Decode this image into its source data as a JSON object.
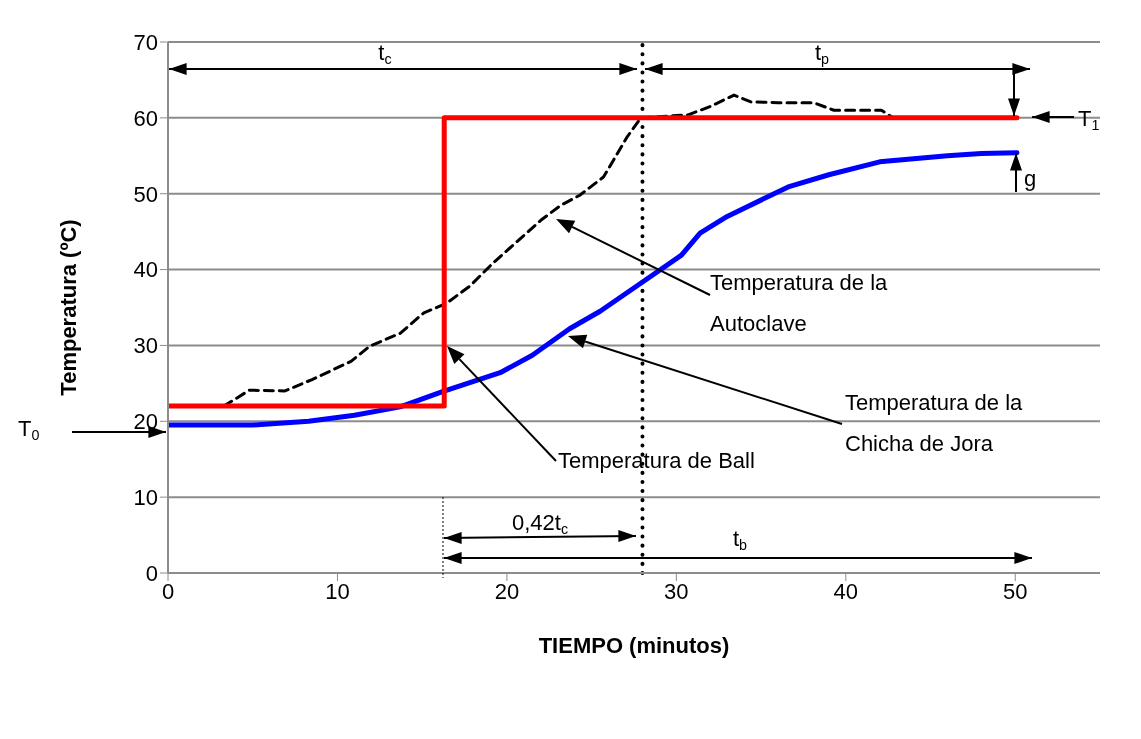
{
  "chart_data": {
    "type": "line",
    "xlabel": "TIEMPO (minutos)",
    "ylabel": "Temperatura (ºC)",
    "xlim": [
      0,
      55
    ],
    "xticks": [
      0,
      10,
      20,
      30,
      40,
      50
    ],
    "ylim": [
      0,
      70
    ],
    "yticks": [
      0,
      10,
      20,
      30,
      40,
      50,
      60,
      70
    ],
    "grid": "y",
    "series": [
      {
        "color": "#000000",
        "line_style": "dashed",
        "x": [
          3.3,
          4.8,
          6.9,
          8.5,
          10.8,
          11.9,
          13.7,
          15.1,
          16.4,
          17.8,
          19.2,
          20.5,
          22,
          23.2,
          24.3,
          25.7,
          27.1,
          27.9,
          30.7,
          32,
          33.4,
          34.4,
          36,
          38.1,
          39.3,
          42.1,
          42.8
        ],
        "values": [
          22,
          24.1,
          24,
          25.5,
          27.9,
          29.9,
          31.6,
          34.3,
          35.5,
          37.8,
          40.9,
          43.5,
          46.5,
          48.5,
          49.8,
          52.2,
          57.5,
          60,
          60.4,
          61.5,
          63,
          62.1,
          62,
          62,
          61,
          61,
          60
        ]
      },
      {
        "color": "#0000ff",
        "line_style": "solid",
        "x": [
          0,
          5,
          8.3,
          11,
          13.7,
          16.2,
          19.6,
          21.5,
          23.7,
          25.5,
          27.9,
          30.3,
          31.4,
          33,
          36.6,
          39,
          42,
          46,
          48,
          50.1
        ],
        "values": [
          19.5,
          19.5,
          20,
          20.8,
          21.9,
          23.9,
          26.4,
          28.7,
          32.2,
          34.5,
          38.2,
          41.9,
          44.8,
          47,
          50.9,
          52.5,
          54.2,
          55,
          55.3,
          55.4
        ]
      },
      {
        "color": "#ff0000",
        "line_style": "solid",
        "x": [
          0,
          16.3,
          16.3,
          50.1
        ],
        "values": [
          22,
          22,
          60,
          60
        ]
      }
    ],
    "ref_lines": [
      {
        "axis": "x",
        "value": 28,
        "line_style": "dotted",
        "color": "#000000"
      }
    ],
    "annotations": [
      "t$_{c}$",
      "t$_{p}$",
      "T$_{1}$",
      "g",
      "T$_{0}$",
      "0,42t$_{c}$",
      "t$_{b}$",
      "Temperatura de la\nAutoclave",
      "Temperatura de la\nChicha de Jora",
      "Temperatura de Ball"
    ]
  }
}
